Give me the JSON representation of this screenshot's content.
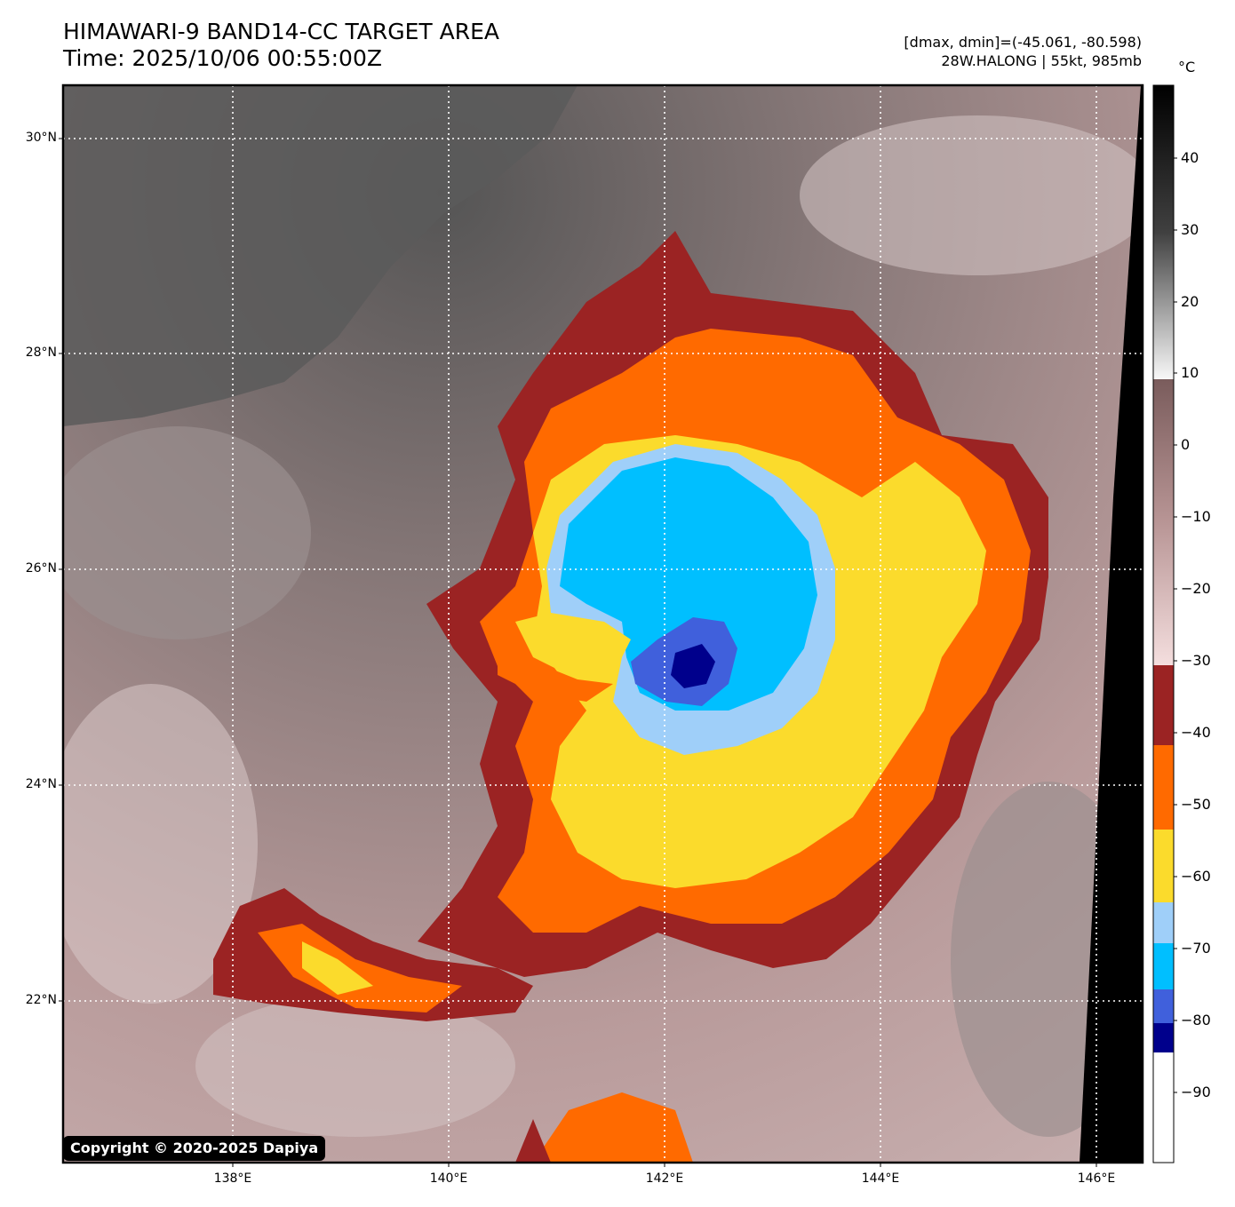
{
  "header": {
    "title_line1": "HIMAWARI-9 BAND14-CC TARGET AREA",
    "title_line2": "Time: 2025/10/06 00:55:00Z",
    "range_text": "[dmax, dmin]=(-45.061, -80.598)",
    "storm_text": "28W.HALONG | 55kt, 985mb"
  },
  "map": {
    "lat_labels": [
      "30°N",
      "28°N",
      "26°N",
      "24°N",
      "22°N"
    ],
    "lon_labels": [
      "138°E",
      "140°E",
      "142°E",
      "144°E",
      "146°E"
    ],
    "copyright": "Copyright © 2020-2025 Dapiya"
  },
  "colorbar": {
    "unit": "°C",
    "ticks": [
      "40",
      "30",
      "20",
      "10",
      "0",
      "−10",
      "−20",
      "−30",
      "−40",
      "−50",
      "−60",
      "−70",
      "−80",
      "−90"
    ],
    "colors": {
      "dark_red": "#9b2323",
      "orange": "#ff6a00",
      "yellow": "#fbdb2c",
      "light_blue": "#9fcff9",
      "cyan": "#00bfff",
      "royal_blue": "#4060dc",
      "navy": "#00008c"
    }
  }
}
